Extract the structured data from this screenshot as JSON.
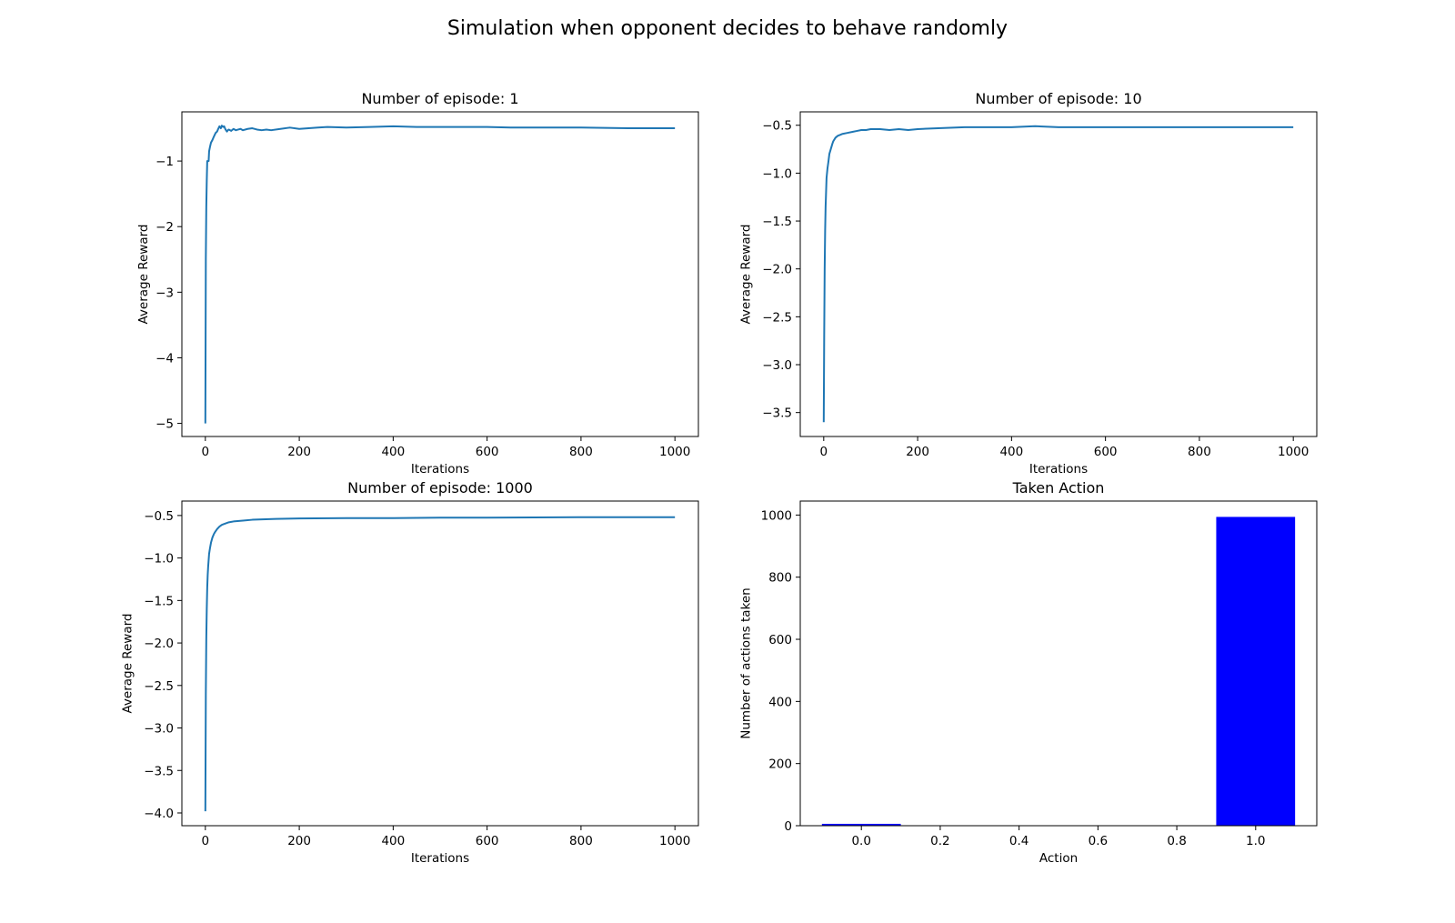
{
  "figure": {
    "suptitle": "Simulation when opponent decides to behave randomly",
    "line_color": "#1f77b4",
    "bar_color": "#0000ff"
  },
  "chart_data": [
    {
      "type": "line",
      "title": "Number of episode: 1",
      "xlabel": "Iterations",
      "ylabel": "Average Reward",
      "xlim": [
        -50,
        1050
      ],
      "ylim": [
        -5.2,
        -0.25
      ],
      "xticks": [
        0,
        200,
        400,
        600,
        800,
        1000
      ],
      "yticks": [
        -5,
        -4,
        -3,
        -2,
        -1
      ],
      "ytick_labels": [
        "−5",
        "−4",
        "−3",
        "−2",
        "−1"
      ],
      "grid": false,
      "series": [
        {
          "x": [
            0,
            1,
            2,
            3,
            4,
            5,
            6,
            7,
            8,
            10,
            12,
            15,
            18,
            20,
            22,
            25,
            28,
            30,
            33,
            35,
            38,
            40,
            43,
            46,
            48,
            50,
            55,
            60,
            65,
            70,
            75,
            80,
            90,
            100,
            110,
            120,
            130,
            140,
            160,
            180,
            200,
            220,
            240,
            260,
            300,
            350,
            400,
            450,
            500,
            550,
            600,
            650,
            700,
            800,
            900,
            1000
          ],
          "y": [
            -5.0,
            -2.5,
            -1.7,
            -1.3,
            -1.0,
            -1.0,
            -1.0,
            -1.0,
            -0.85,
            -0.78,
            -0.72,
            -0.68,
            -0.63,
            -0.6,
            -0.57,
            -0.55,
            -0.5,
            -0.47,
            -0.5,
            -0.46,
            -0.48,
            -0.47,
            -0.52,
            -0.55,
            -0.53,
            -0.52,
            -0.54,
            -0.51,
            -0.53,
            -0.52,
            -0.51,
            -0.53,
            -0.51,
            -0.5,
            -0.52,
            -0.53,
            -0.52,
            -0.53,
            -0.51,
            -0.49,
            -0.51,
            -0.5,
            -0.49,
            -0.48,
            -0.49,
            -0.48,
            -0.47,
            -0.48,
            -0.48,
            -0.48,
            -0.48,
            -0.49,
            -0.49,
            -0.49,
            -0.5,
            -0.5
          ]
        }
      ]
    },
    {
      "type": "line",
      "title": "Number of episode: 10",
      "xlabel": "Iterations",
      "ylabel": "Average Reward",
      "xlim": [
        -50,
        1050
      ],
      "ylim": [
        -3.75,
        -0.36
      ],
      "xticks": [
        0,
        200,
        400,
        600,
        800,
        1000
      ],
      "yticks": [
        -3.5,
        -3.0,
        -2.5,
        -2.0,
        -1.5,
        -1.0,
        -0.5
      ],
      "ytick_labels": [
        "−3.5",
        "−3.0",
        "−2.5",
        "−2.0",
        "−1.5",
        "−1.0",
        "−0.5"
      ],
      "grid": false,
      "series": [
        {
          "x": [
            0,
            1,
            2,
            3,
            4,
            5,
            6,
            8,
            10,
            12,
            15,
            18,
            20,
            25,
            30,
            35,
            40,
            50,
            60,
            70,
            80,
            90,
            100,
            120,
            140,
            160,
            180,
            200,
            250,
            300,
            350,
            400,
            450,
            500,
            600,
            700,
            800,
            900,
            1000
          ],
          "y": [
            -3.6,
            -2.7,
            -2.0,
            -1.6,
            -1.35,
            -1.2,
            -1.05,
            -0.95,
            -0.88,
            -0.8,
            -0.75,
            -0.7,
            -0.67,
            -0.63,
            -0.61,
            -0.6,
            -0.59,
            -0.58,
            -0.57,
            -0.56,
            -0.55,
            -0.55,
            -0.54,
            -0.54,
            -0.55,
            -0.54,
            -0.55,
            -0.54,
            -0.53,
            -0.52,
            -0.52,
            -0.52,
            -0.51,
            -0.52,
            -0.52,
            -0.52,
            -0.52,
            -0.52,
            -0.52
          ]
        }
      ]
    },
    {
      "type": "line",
      "title": "Number of episode: 1000",
      "xlabel": "Iterations",
      "ylabel": "Average Reward",
      "xlim": [
        -50,
        1050
      ],
      "ylim": [
        -4.15,
        -0.33
      ],
      "xticks": [
        0,
        200,
        400,
        600,
        800,
        1000
      ],
      "yticks": [
        -4.0,
        -3.5,
        -3.0,
        -2.5,
        -2.0,
        -1.5,
        -1.0,
        -0.5
      ],
      "ytick_labels": [
        "−4.0",
        "−3.5",
        "−3.0",
        "−2.5",
        "−2.0",
        "−1.5",
        "−1.0",
        "−0.5"
      ],
      "grid": false,
      "series": [
        {
          "x": [
            0,
            1,
            2,
            3,
            4,
            5,
            6,
            8,
            10,
            12,
            15,
            18,
            20,
            25,
            30,
            35,
            40,
            50,
            60,
            80,
            100,
            150,
            200,
            300,
            400,
            500,
            600,
            700,
            800,
            900,
            1000
          ],
          "y": [
            -3.98,
            -2.6,
            -1.95,
            -1.6,
            -1.35,
            -1.2,
            -1.1,
            -0.95,
            -0.88,
            -0.82,
            -0.76,
            -0.72,
            -0.7,
            -0.66,
            -0.63,
            -0.61,
            -0.6,
            -0.58,
            -0.57,
            -0.56,
            -0.55,
            -0.54,
            -0.535,
            -0.53,
            -0.53,
            -0.525,
            -0.525,
            -0.522,
            -0.52,
            -0.52,
            -0.52
          ]
        }
      ]
    },
    {
      "type": "bar",
      "title": "Taken Action",
      "xlabel": "Action",
      "ylabel": "Number of actions taken",
      "xlim": [
        -0.155,
        1.155
      ],
      "ylim": [
        0,
        1045
      ],
      "xticks": [
        0.0,
        0.2,
        0.4,
        0.6,
        0.8,
        1.0
      ],
      "xtick_labels": [
        "0.0",
        "0.2",
        "0.4",
        "0.6",
        "0.8",
        "1.0"
      ],
      "yticks": [
        0,
        200,
        400,
        600,
        800,
        1000
      ],
      "grid": false,
      "bar_width": 0.2,
      "x": [
        0,
        1
      ],
      "values": [
        6,
        994
      ]
    }
  ]
}
